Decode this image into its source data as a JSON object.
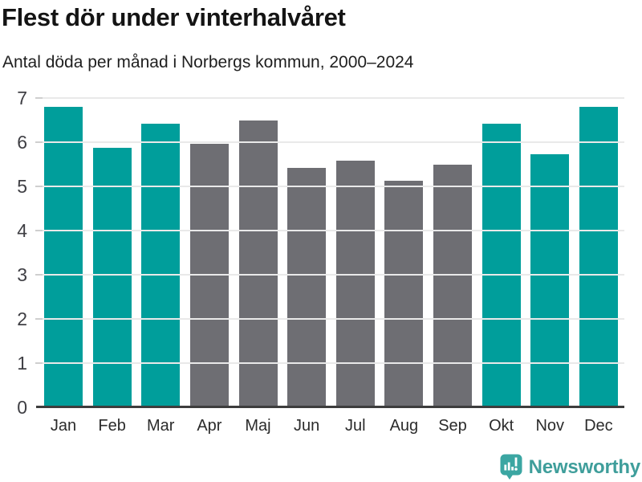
{
  "header": {
    "title": "Flest dör under vinterhalvåret",
    "subtitle": "Antal döda per månad i Norbergs kommun, 2000–2024"
  },
  "footer": {
    "brand": "Newsworthy",
    "logo_icon": "bar-chart-speech-bubble-icon",
    "brand_color": "#3f9e9b",
    "logo_bubble_color": "#3ba6a2"
  },
  "chart_data": {
    "type": "bar",
    "title": "Flest dör under vinterhalvåret",
    "subtitle": "Antal döda per månad i Norbergs kommun, 2000–2024",
    "categories": [
      "Jan",
      "Feb",
      "Mar",
      "Apr",
      "Maj",
      "Jun",
      "Jul",
      "Aug",
      "Sep",
      "Okt",
      "Nov",
      "Dec"
    ],
    "values": [
      6.8,
      5.87,
      6.42,
      5.97,
      6.5,
      5.42,
      5.58,
      5.12,
      5.5,
      6.42,
      5.72,
      6.8
    ],
    "bar_color_keys": [
      "winter",
      "winter",
      "winter",
      "summer",
      "summer",
      "summer",
      "summer",
      "summer",
      "summer",
      "winter",
      "winter",
      "winter"
    ],
    "palette": {
      "winter": "#009e9b",
      "summer": "#6e6e73"
    },
    "xlabel": "",
    "ylabel": "",
    "ylim": [
      0,
      7
    ],
    "yticks": [
      0,
      1,
      2,
      3,
      4,
      5,
      6,
      7
    ],
    "grid": "horizontal",
    "legend": "none",
    "axis_colors": {
      "gridline": "#e9e9e9",
      "tick": "#cfcfcf",
      "baseline": "#3d3d3d",
      "label": "#3f3f44"
    }
  }
}
